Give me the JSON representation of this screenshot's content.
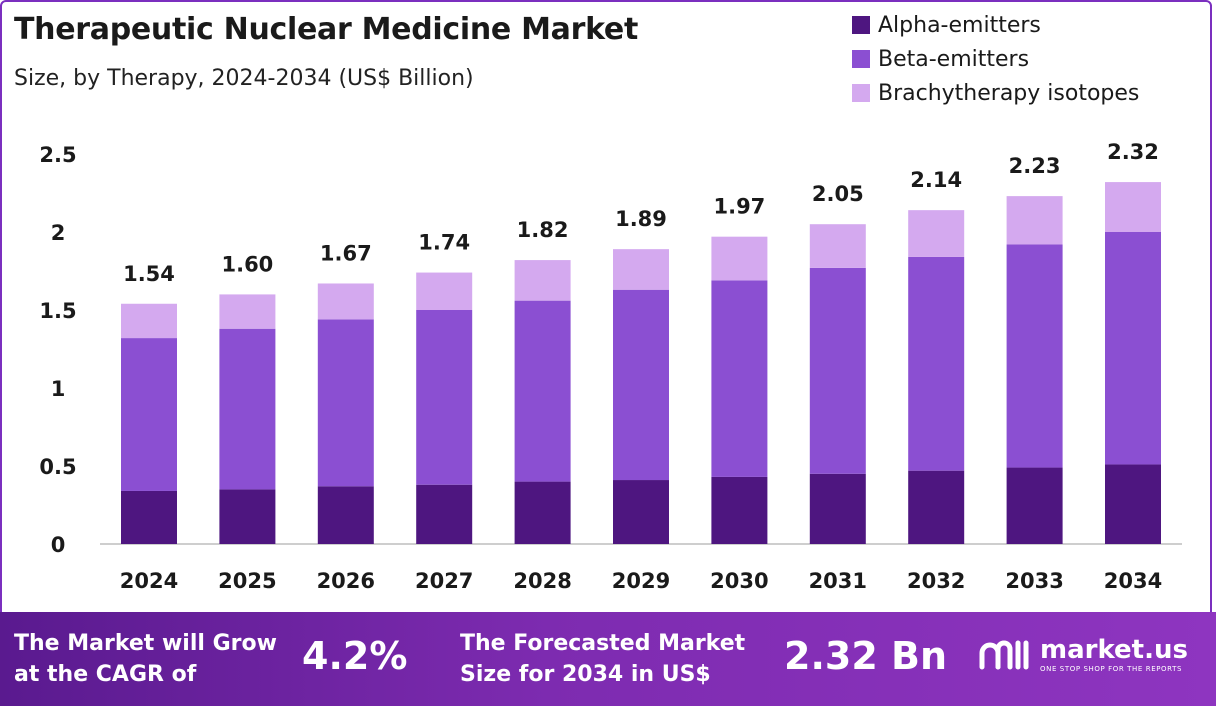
{
  "chart_data": {
    "type": "bar",
    "stacked": true,
    "title": "Therapeutic Nuclear Medicine Market",
    "subtitle": "Size, by Therapy, 2024-2034 (US$ Billion)",
    "categories": [
      "2024",
      "2025",
      "2026",
      "2027",
      "2028",
      "2029",
      "2030",
      "2031",
      "2032",
      "2033",
      "2034"
    ],
    "series": [
      {
        "name": "Alpha-emitters",
        "color": "#4e1680",
        "values": [
          0.34,
          0.35,
          0.37,
          0.38,
          0.4,
          0.41,
          0.43,
          0.45,
          0.47,
          0.49,
          0.51
        ]
      },
      {
        "name": "Beta-emitters",
        "color": "#8b4fd2",
        "values": [
          0.98,
          1.03,
          1.07,
          1.12,
          1.16,
          1.22,
          1.26,
          1.32,
          1.37,
          1.43,
          1.49
        ]
      },
      {
        "name": "Brachytherapy isotopes",
        "color": "#d4a9ef",
        "values": [
          0.22,
          0.22,
          0.23,
          0.24,
          0.26,
          0.26,
          0.28,
          0.28,
          0.3,
          0.31,
          0.32
        ]
      }
    ],
    "totals": [
      "1.54",
      "1.60",
      "1.67",
      "1.74",
      "1.82",
      "1.89",
      "1.97",
      "2.05",
      "2.14",
      "2.23",
      "2.32"
    ],
    "ylim": [
      0,
      2.5
    ],
    "yticks": [
      "0",
      "0.5",
      "1",
      "1.5",
      "2",
      "2.5"
    ],
    "xlabel": "",
    "ylabel": "",
    "legend": "top-right",
    "grid": false
  },
  "footer": {
    "cagr_line1": "The Market will Grow",
    "cagr_line2": "at the CAGR of",
    "cagr_value": "4.2%",
    "size_line1": "The Forecasted Market",
    "size_line2": "Size for 2034 in US$",
    "size_value": "2.32 Bn",
    "brand_name": "market.us",
    "brand_tagline": "ONE STOP SHOP FOR THE REPORTS"
  }
}
